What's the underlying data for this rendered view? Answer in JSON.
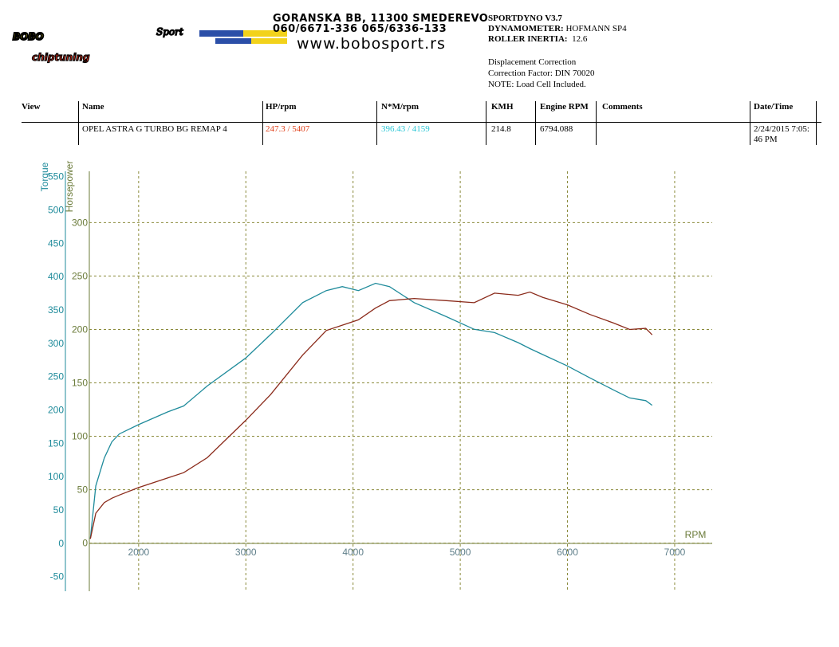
{
  "header": {
    "logo": {
      "brand": "BOBO",
      "sport": "Sport",
      "tagline": "chiptuning"
    },
    "address": [
      "GORANSKA BB, 11300 SMEDEREVO",
      "060/6671-336 065/6336-133",
      "www.bobosport.rs"
    ],
    "software": "SPORTDYNO V3.7",
    "dynamometer": {
      "label": "DYNAMOMETER:",
      "value": "HOFMANN SP4"
    },
    "inertia": {
      "label": "ROLLER INERTIA:",
      "value": "12.6"
    },
    "notes": [
      "Displacement Correction",
      "Correction Factor: DIN 70020",
      "NOTE: Load Cell Included."
    ]
  },
  "table": {
    "columns": [
      "View",
      "Name",
      "HP/rpm",
      "N*M/rpm",
      "KMH",
      "Engine RPM",
      "Comments",
      "Date/Time"
    ],
    "rows": [
      {
        "name": "OPEL ASTRA G TURBO BG REMAP 4",
        "hp": "247.3 / 5407",
        "torque": "396.43 / 4159",
        "kmh": "214.8",
        "engine_rpm": "6794.088",
        "date": "2/24/2015 7:05:46 PM"
      }
    ]
  },
  "chart_data": {
    "type": "line",
    "xlabel": "RPM",
    "x": [
      1550,
      1600,
      1680,
      1750,
      1820,
      2000,
      2270,
      2420,
      2640,
      3000,
      3230,
      3530,
      3750,
      3900,
      4050,
      4210,
      4340,
      4570,
      4870,
      5130,
      5320,
      5540,
      5650,
      5770,
      6000,
      6210,
      6430,
      6580,
      6730,
      6790
    ],
    "series": [
      {
        "name": "Torque",
        "color": "#1f8b9b",
        "axis": "y2",
        "values": [
          7,
          86,
          128,
          152,
          164,
          178,
          197,
          206,
          236,
          278,
          313,
          361,
          379,
          385,
          379,
          390,
          385,
          361,
          340,
          321,
          316,
          301,
          292,
          283,
          266,
          248,
          230,
          218,
          214,
          207
        ]
      },
      {
        "name": "Horsepower",
        "color": "#8b2b1b",
        "values": [
          4,
          28,
          38,
          42,
          45,
          52,
          61,
          66,
          80,
          115,
          139,
          176,
          199,
          204,
          209,
          220,
          227,
          229,
          227,
          225,
          234,
          232,
          235,
          230,
          223,
          214,
          206,
          200,
          201,
          195
        ]
      }
    ],
    "xlim": [
      1540,
      7350
    ],
    "xticks": [
      2000,
      3000,
      4000,
      5000,
      6000,
      7000
    ],
    "ylim": [
      -45,
      348
    ],
    "yticks": [
      0,
      50,
      100,
      150,
      200,
      250,
      300
    ],
    "y2lim": [
      -72,
      558
    ],
    "y2ticks": [
      -50,
      0,
      50,
      100,
      150,
      200,
      250,
      300,
      350,
      400,
      450,
      500,
      550
    ],
    "grid": true
  }
}
